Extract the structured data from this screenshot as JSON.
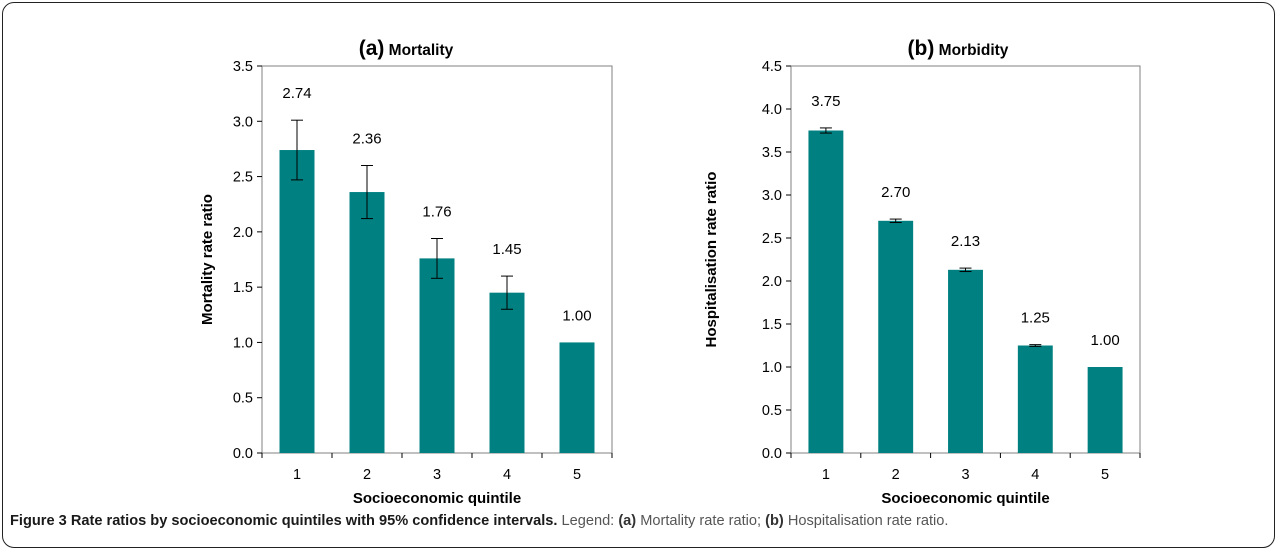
{
  "chart_data": [
    {
      "type": "bar",
      "panel_label": "(a)",
      "title": "Mortality",
      "xlabel": "Socioeconomic quintile",
      "ylabel": "Mortality rate ratio",
      "categories": [
        "1",
        "2",
        "3",
        "4",
        "5"
      ],
      "values": [
        2.74,
        2.36,
        1.76,
        1.45,
        1.0
      ],
      "value_labels": [
        "2.74",
        "2.36",
        "1.76",
        "1.45",
        "1.00"
      ],
      "ci_lower": [
        2.47,
        2.12,
        1.58,
        1.3,
        1.0
      ],
      "ci_upper": [
        3.01,
        2.6,
        1.94,
        1.6,
        1.0
      ],
      "ylim": [
        0,
        3.5
      ],
      "yticks": [
        "0.0",
        "0.5",
        "1.0",
        "1.5",
        "2.0",
        "2.5",
        "3.0",
        "3.5"
      ],
      "bar_color": "#008080",
      "grid": false
    },
    {
      "type": "bar",
      "panel_label": "(b)",
      "title": "Morbidity",
      "xlabel": "Socioeconomic quintile",
      "ylabel": "Hospitalisation rate ratio",
      "categories": [
        "1",
        "2",
        "3",
        "4",
        "5"
      ],
      "values": [
        3.75,
        2.7,
        2.13,
        1.25,
        1.0
      ],
      "value_labels": [
        "3.75",
        "2.70",
        "2.13",
        "1.25",
        "1.00"
      ],
      "ci_lower": [
        3.72,
        2.68,
        2.11,
        1.24,
        1.0
      ],
      "ci_upper": [
        3.78,
        2.72,
        2.15,
        1.26,
        1.0
      ],
      "ylim": [
        0,
        4.5
      ],
      "yticks": [
        "0.0",
        "0.5",
        "1.0",
        "1.5",
        "2.0",
        "2.5",
        "3.0",
        "3.5",
        "4.0",
        "4.5"
      ],
      "bar_color": "#008080",
      "grid": false
    }
  ],
  "caption": {
    "figure_label": "Figure 3",
    "figure_title": "Rate ratios by socioeconomic quintiles with 95% confidence intervals.",
    "legend_prefix": "Legend:",
    "items": [
      {
        "tag": "(a)",
        "text": "Mortality rate ratio;"
      },
      {
        "tag": "(b)",
        "text": "Hospitalisation rate ratio."
      }
    ]
  }
}
